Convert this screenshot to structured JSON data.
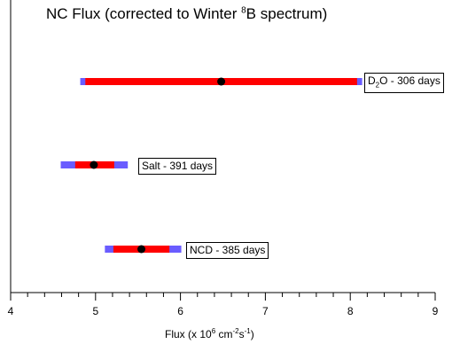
{
  "chart_data": {
    "type": "errorbar",
    "title": {
      "pre": "NC Flux (corrected to Winter ",
      "sup": "8",
      "post": "B spectrum)"
    },
    "xlabel": {
      "pre": "Flux (x 10",
      "sup1": "6",
      "mid": " cm",
      "sup2": "-2",
      "mid2": "s",
      "sup3": "-1",
      "post": ")"
    },
    "xlim": [
      4,
      9
    ],
    "x_ticks": [
      "4",
      "5",
      "6",
      "7",
      "8",
      "9"
    ],
    "grid": false,
    "series": [
      {
        "label_pre": "D",
        "label_sub": "2",
        "label_post": "O - 306 days",
        "center": 6.48,
        "stat_err": [
          4.88,
          8.08
        ],
        "total_err": [
          4.82,
          8.14
        ],
        "row": 0
      },
      {
        "label_pre": "Salt - 391 days",
        "label_sub": "",
        "label_post": "",
        "center": 4.98,
        "stat_err": [
          4.76,
          5.22
        ],
        "total_err": [
          4.59,
          5.38
        ],
        "row": 1
      },
      {
        "label_pre": "NCD - 385 days",
        "label_sub": "",
        "label_post": "",
        "center": 5.54,
        "stat_err": [
          5.21,
          5.87
        ],
        "total_err": [
          5.11,
          6.01
        ],
        "row": 2
      }
    ],
    "colors": {
      "stat": "#ff0000",
      "total": "#6a5cff",
      "point": "#000000"
    }
  }
}
